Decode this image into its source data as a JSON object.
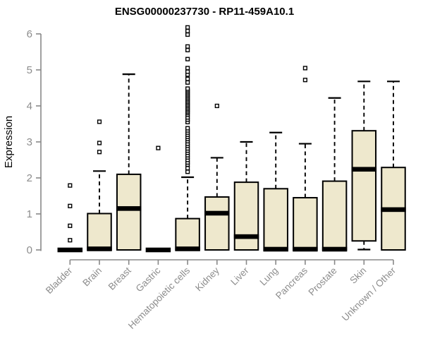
{
  "page": {
    "background": "#ffffff"
  },
  "chart_data": {
    "type": "boxplot",
    "title": "ENSG00000237730 - RP11-459A10.1",
    "xlabel": "",
    "ylabel": "Expression",
    "ylim": [
      0,
      6
    ],
    "yticks": [
      0,
      1,
      2,
      3,
      4,
      5,
      6
    ],
    "grid": false,
    "legend": false,
    "categories": [
      "Bladder",
      "Brain",
      "Breast",
      "Gastric",
      "Hematopoietic cells",
      "Kidney",
      "Liver",
      "Lung",
      "Pancreas",
      "Prostate",
      "Skin",
      "Unknown / Other"
    ],
    "series": [
      {
        "name": "Bladder",
        "q1": 0,
        "median": 0,
        "q3": 0,
        "whisker_low": 0,
        "whisker_high": 0,
        "outliers": [
          0.27,
          0.67,
          1.22,
          1.79
        ]
      },
      {
        "name": "Brain",
        "q1": 0,
        "median": 0.03,
        "q3": 1.01,
        "whisker_low": 0,
        "whisker_high": 2.19,
        "outliers": [
          2.72,
          2.97,
          3.56
        ]
      },
      {
        "name": "Breast",
        "q1": 0,
        "median": 1.15,
        "q3": 2.1,
        "whisker_low": 0,
        "whisker_high": 4.88,
        "outliers": []
      },
      {
        "name": "Gastric",
        "q1": 0,
        "median": 0,
        "q3": 0,
        "whisker_low": 0,
        "whisker_high": 0,
        "outliers": [
          2.83
        ]
      },
      {
        "name": "Hematopoietic cells",
        "q1": 0,
        "median": 0.03,
        "q3": 0.87,
        "whisker_low": 0,
        "whisker_high": 2.02,
        "outliers": [
          2.17,
          2.27,
          2.37,
          2.43,
          2.5,
          2.57,
          2.63,
          2.7,
          2.76,
          2.82,
          2.89,
          2.95,
          3.02,
          3.08,
          3.14,
          3.2,
          3.26,
          3.32,
          3.38,
          3.55,
          3.62,
          3.68,
          3.75,
          3.8,
          3.84,
          3.88,
          3.92,
          3.96,
          4.0,
          4.04,
          4.08,
          4.12,
          4.16,
          4.2,
          4.24,
          4.28,
          4.32,
          4.36,
          4.4,
          4.44,
          4.48,
          4.65,
          4.75,
          4.87,
          4.95,
          5.05,
          5.3,
          5.55,
          5.65,
          5.98,
          6.08,
          6.18
        ]
      },
      {
        "name": "Kidney",
        "q1": 0,
        "median": 1.02,
        "q3": 1.47,
        "whisker_low": 0,
        "whisker_high": 2.56,
        "outliers": [
          4.0
        ]
      },
      {
        "name": "Liver",
        "q1": 0,
        "median": 0.37,
        "q3": 1.88,
        "whisker_low": 0,
        "whisker_high": 3.0,
        "outliers": []
      },
      {
        "name": "Lung",
        "q1": 0,
        "median": 0.02,
        "q3": 1.7,
        "whisker_low": 0,
        "whisker_high": 3.26,
        "outliers": []
      },
      {
        "name": "Pancreas",
        "q1": 0,
        "median": 0.02,
        "q3": 1.45,
        "whisker_low": 0,
        "whisker_high": 2.95,
        "outliers": [
          4.72,
          5.05
        ]
      },
      {
        "name": "Prostate",
        "q1": 0,
        "median": 0.02,
        "q3": 1.91,
        "whisker_low": 0,
        "whisker_high": 4.22,
        "outliers": []
      },
      {
        "name": "Skin",
        "q1": 0.25,
        "median": 2.24,
        "q3": 3.31,
        "whisker_low": 0.01,
        "whisker_high": 4.68,
        "outliers": []
      },
      {
        "name": "Unknown / Other",
        "q1": 0,
        "median": 1.12,
        "q3": 2.29,
        "whisker_low": 0,
        "whisker_high": 4.68,
        "outliers": []
      }
    ],
    "colors": {
      "box_fill": "#EEE8CD",
      "box_stroke": "#000000",
      "median": "#000000",
      "whisker": "#000000",
      "outlier_fill": "#FFFFFF",
      "axis": "#888888",
      "tick_label": "#8C8C8C",
      "title": "#000000"
    }
  }
}
